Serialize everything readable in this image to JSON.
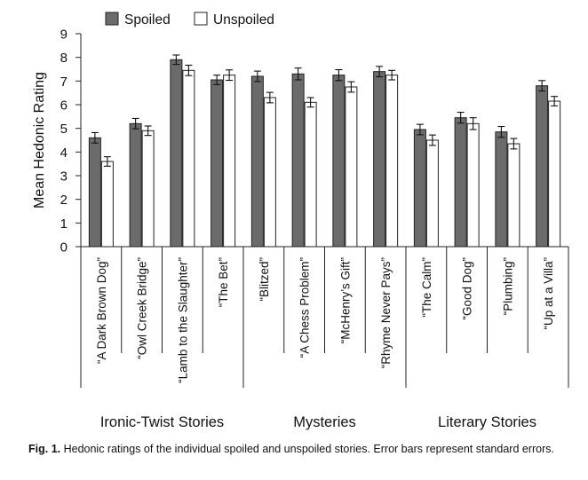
{
  "chart_data": {
    "type": "bar",
    "ylabel": "Mean Hedonic Rating",
    "ylim": [
      0,
      9
    ],
    "yticks": [
      "0",
      "1",
      "2",
      "3",
      "4",
      "5",
      "6",
      "7",
      "8",
      "9"
    ],
    "grid": false,
    "legend_position": "top",
    "categories": [
      "“A Dark Brown Dog”",
      "“Owl Creek Bridge”",
      "“Lamb to the Slaughter”",
      "“The Bet”",
      "“Blitzed”",
      "“A Chess Problem”",
      "“McHenry’s Gift”",
      "“Rhyme Never Pays”",
      "“The Calm”",
      "“Good Dog”",
      "“Plumbing”",
      "“Up at a Villa”"
    ],
    "groups": [
      {
        "label": "Ironic-Twist Stories",
        "start": 0,
        "end": 3
      },
      {
        "label": "Mysteries",
        "start": 4,
        "end": 7
      },
      {
        "label": "Literary Stories",
        "start": 8,
        "end": 11
      }
    ],
    "series": [
      {
        "name": "Spoiled",
        "color": "#6b6b6b",
        "values": [
          4.6,
          5.2,
          7.9,
          7.05,
          7.2,
          7.3,
          7.25,
          7.4,
          4.95,
          5.45,
          4.85,
          6.8
        ],
        "errors": [
          0.22,
          0.22,
          0.2,
          0.2,
          0.22,
          0.25,
          0.23,
          0.22,
          0.22,
          0.23,
          0.23,
          0.22
        ]
      },
      {
        "name": "Unspoiled",
        "color": "#ffffff",
        "values": [
          3.6,
          4.9,
          7.45,
          7.25,
          6.3,
          6.1,
          6.75,
          7.25,
          4.5,
          5.2,
          4.35,
          6.15
        ],
        "errors": [
          0.2,
          0.2,
          0.22,
          0.22,
          0.22,
          0.2,
          0.22,
          0.2,
          0.22,
          0.25,
          0.22,
          0.2
        ]
      }
    ]
  },
  "caption": {
    "label": "Fig. 1.",
    "text": " Hedonic ratings of the individual spoiled and unspoiled stories. Error bars represent standard errors."
  }
}
